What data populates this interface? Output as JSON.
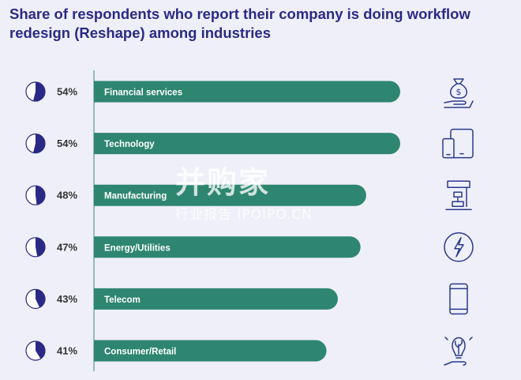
{
  "title": "Share of respondents who report their company is doing workflow redesign (Reshape) among industries",
  "watermark": {
    "main": "并购家",
    "sub": "行业报告 IPOIPO.CN"
  },
  "colors": {
    "bar": "#2e8670",
    "accent": "#2a2a86",
    "text": "#333333",
    "icon": "#2a3a8c"
  },
  "chart_data": {
    "type": "bar",
    "orientation": "horizontal",
    "categories": [
      "Financial services",
      "Technology",
      "Manufacturing",
      "Energy/Utilities",
      "Telecom",
      "Consumer/Retail"
    ],
    "values": [
      54,
      54,
      48,
      47,
      43,
      41
    ],
    "value_labels": [
      "54%",
      "54%",
      "48%",
      "47%",
      "43%",
      "41%"
    ],
    "icons": [
      "money-bag-icon",
      "devices-icon",
      "machine-icon",
      "lightning-icon",
      "phone-icon",
      "lightbulb-hand-icon"
    ],
    "title": "Share of respondents who report their company is doing workflow redesign (Reshape) among industries",
    "xlabel": "",
    "ylabel": "",
    "grid": false
  }
}
